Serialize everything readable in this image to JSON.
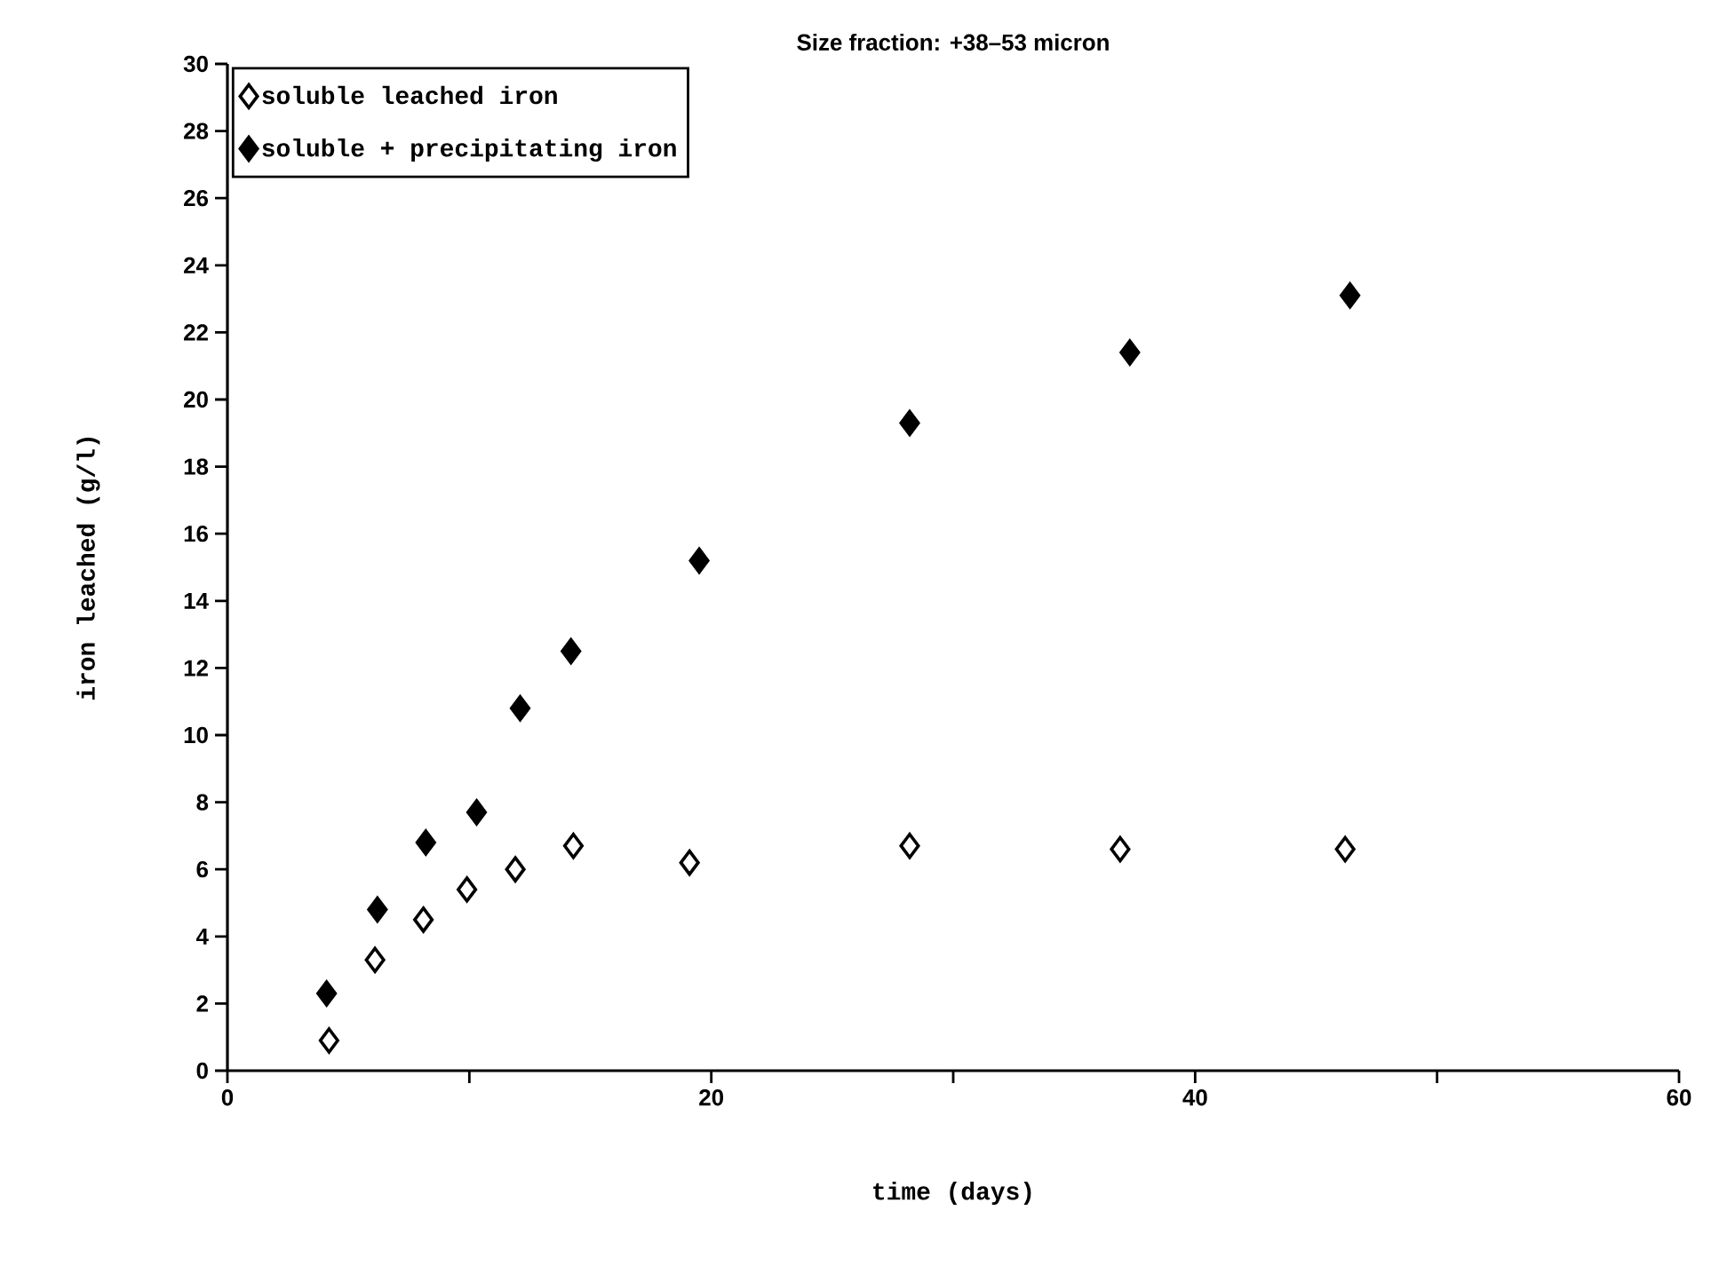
{
  "chart_data": {
    "type": "scatter",
    "title": "Size fraction: +38–53 micron",
    "xlabel": "time  (days)",
    "ylabel": "iron leached  (g/l)",
    "xlim": [
      0,
      60
    ],
    "ylim": [
      0,
      30
    ],
    "xticks": [
      0,
      {
        "value": 10,
        "label": null
      },
      20,
      {
        "value": 30,
        "label": null
      },
      40,
      {
        "value": 50,
        "label": null
      },
      60
    ],
    "yticks": [
      0,
      2,
      4,
      6,
      8,
      10,
      12,
      14,
      16,
      18,
      20,
      22,
      24,
      26,
      28,
      30
    ],
    "marker": "diamond",
    "legend": "top left",
    "grid": false,
    "series": [
      {
        "name": "soluble leached iron",
        "color": "#ffffff",
        "x": [
          4.2,
          6.1,
          8.1,
          9.9,
          11.9,
          14.3,
          19.1,
          28.2,
          36.9,
          46.2
        ],
        "values": [
          0.9,
          3.3,
          4.5,
          5.4,
          6.0,
          6.7,
          6.2,
          6.7,
          6.6,
          6.6
        ]
      },
      {
        "name": "soluble + precipitating iron",
        "color": "#000000",
        "x": [
          4.1,
          6.2,
          8.2,
          10.3,
          12.1,
          14.2,
          19.5,
          28.2,
          37.3,
          46.4
        ],
        "values": [
          2.3,
          4.8,
          6.8,
          7.7,
          10.8,
          12.5,
          15.2,
          19.3,
          21.4,
          23.1
        ]
      }
    ]
  }
}
